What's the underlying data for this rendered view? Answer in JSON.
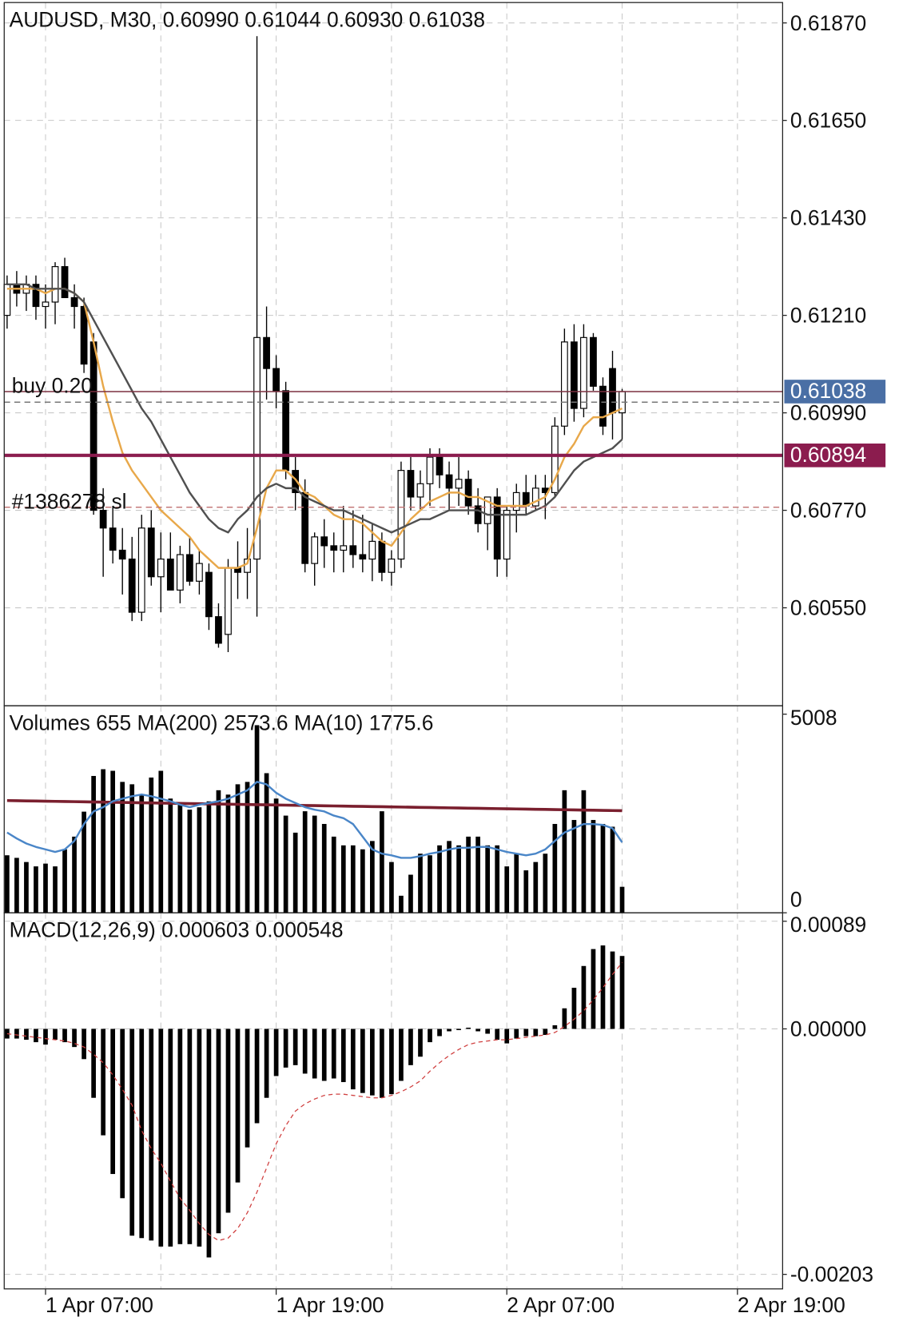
{
  "chart_data": [
    {
      "type": "candlestick",
      "title": "AUDUSD, M30, 0.60990 0.61044 0.60930 0.61038",
      "x": [
        0,
        1,
        2,
        3,
        4,
        5,
        6,
        7,
        8,
        9,
        10,
        11,
        12,
        13,
        14,
        15,
        16,
        17,
        18,
        19,
        20,
        21,
        22,
        23,
        24,
        25,
        26,
        27,
        28,
        29,
        30,
        31,
        32,
        33,
        34,
        35,
        36,
        37,
        38,
        39,
        40,
        41,
        42,
        43,
        44,
        45,
        46,
        47,
        48,
        49,
        50,
        51,
        52,
        53,
        54,
        55,
        56,
        57,
        58,
        59,
        60,
        61,
        62,
        63,
        64
      ],
      "xlim": [
        -0.3,
        80.7
      ],
      "xticks": [
        {
          "value": 4,
          "label": "1 Apr 07:00"
        },
        {
          "value": 28,
          "label": "1 Apr 19:00"
        },
        {
          "value": 52,
          "label": "2 Apr 07:00"
        },
        {
          "value": 76,
          "label": "2 Apr 19:00"
        }
      ],
      "open": [
        0.6121,
        0.6128,
        0.6126,
        0.6128,
        0.6123,
        0.6124,
        0.6132,
        0.6125,
        0.6123,
        0.6115,
        0.6077,
        0.6073,
        0.6068,
        0.6066,
        0.6054,
        0.6073,
        0.6062,
        0.6066,
        0.6059,
        0.6067,
        0.6061,
        0.6063,
        0.6053,
        0.6049,
        0.6064,
        0.6063,
        0.6066,
        0.6116,
        0.6109,
        0.6104,
        0.6086,
        0.6081,
        0.6065,
        0.6071,
        0.6069,
        0.6068,
        0.6069,
        0.6067,
        0.6066,
        0.607,
        0.6063,
        0.6066,
        0.6086,
        0.608,
        0.6083,
        0.6089,
        0.6085,
        0.6082,
        0.6084,
        0.6078,
        0.6074,
        0.608,
        0.6066,
        0.6077,
        0.6081,
        0.6078,
        0.6082,
        0.6081,
        0.6096,
        0.6115,
        0.61,
        0.6116,
        0.6105,
        0.6109,
        0.6099
      ],
      "high": [
        0.613,
        0.6131,
        0.613,
        0.613,
        0.6128,
        0.6133,
        0.6134,
        0.6128,
        0.6125,
        0.6117,
        0.6082,
        0.6078,
        0.6073,
        0.6071,
        0.6076,
        0.6077,
        0.6072,
        0.6072,
        0.6069,
        0.6071,
        0.6068,
        0.6065,
        0.6056,
        0.6066,
        0.607,
        0.6073,
        0.6184,
        0.6123,
        0.6112,
        0.6106,
        0.6089,
        0.6084,
        0.6072,
        0.6075,
        0.6072,
        0.6078,
        0.6077,
        0.6076,
        0.6074,
        0.6072,
        0.6068,
        0.6088,
        0.6089,
        0.6086,
        0.6091,
        0.6091,
        0.6088,
        0.6089,
        0.6086,
        0.6082,
        0.608,
        0.6082,
        0.6078,
        0.6083,
        0.6085,
        0.6085,
        0.6085,
        0.6098,
        0.6118,
        0.6119,
        0.6119,
        0.6117,
        0.6107,
        0.6113,
        0.61044
      ],
      "low": [
        0.6118,
        0.6123,
        0.6122,
        0.612,
        0.6118,
        0.6119,
        0.6125,
        0.6118,
        0.6108,
        0.6076,
        0.6062,
        0.6065,
        0.6058,
        0.6052,
        0.6052,
        0.606,
        0.6054,
        0.6059,
        0.6056,
        0.606,
        0.6058,
        0.605,
        0.6046,
        0.6045,
        0.6057,
        0.6057,
        0.6053,
        0.6102,
        0.61,
        0.6084,
        0.6077,
        0.6063,
        0.606,
        0.6064,
        0.6063,
        0.6063,
        0.6064,
        0.6063,
        0.6061,
        0.6061,
        0.606,
        0.6064,
        0.6077,
        0.6077,
        0.6078,
        0.6082,
        0.6077,
        0.6078,
        0.6076,
        0.6072,
        0.6068,
        0.6062,
        0.6062,
        0.6072,
        0.6076,
        0.6077,
        0.6075,
        0.608,
        0.6094,
        0.6097,
        0.6098,
        0.6104,
        0.6094,
        0.6093,
        0.6093
      ],
      "close": [
        0.6128,
        0.6126,
        0.6128,
        0.6123,
        0.6124,
        0.6132,
        0.6125,
        0.6123,
        0.611,
        0.6077,
        0.6073,
        0.6068,
        0.6066,
        0.6054,
        0.6073,
        0.6062,
        0.6066,
        0.6059,
        0.6067,
        0.6061,
        0.6065,
        0.6053,
        0.6047,
        0.6064,
        0.6063,
        0.6066,
        0.6116,
        0.6109,
        0.6104,
        0.6086,
        0.6081,
        0.6065,
        0.6071,
        0.6069,
        0.6068,
        0.6069,
        0.6067,
        0.6066,
        0.607,
        0.6063,
        0.6066,
        0.6086,
        0.608,
        0.6083,
        0.6089,
        0.6085,
        0.6082,
        0.6084,
        0.6078,
        0.6074,
        0.608,
        0.6066,
        0.6077,
        0.6081,
        0.6078,
        0.6082,
        0.6081,
        0.6096,
        0.6115,
        0.61,
        0.6116,
        0.6105,
        0.6096,
        0.6099,
        0.61038
      ],
      "series": [
        {
          "color": "#e8a84a",
          "values": [
            0.6127,
            0.6127,
            0.6127,
            0.6127,
            0.6126,
            0.6127,
            0.6127,
            0.6126,
            0.6124,
            0.6115,
            0.6105,
            0.6097,
            0.609,
            0.6086,
            0.6083,
            0.608,
            0.6077,
            0.6075,
            0.6073,
            0.6071,
            0.6068,
            0.6066,
            0.6064,
            0.6064,
            0.6064,
            0.6065,
            0.6073,
            0.6082,
            0.6086,
            0.6086,
            0.6084,
            0.6081,
            0.608,
            0.6078,
            0.6076,
            0.6075,
            0.6075,
            0.6074,
            0.6072,
            0.607,
            0.6069,
            0.6072,
            0.6075,
            0.6077,
            0.6079,
            0.608,
            0.6081,
            0.6081,
            0.608,
            0.608,
            0.6079,
            0.6078,
            0.6078,
            0.6078,
            0.6078,
            0.6079,
            0.608,
            0.6084,
            0.6089,
            0.6092,
            0.6096,
            0.6098,
            0.6098,
            0.6099,
            0.61
          ]
        },
        {
          "color": "#505050",
          "values": [
            0.6128,
            0.6128,
            0.6128,
            0.6127,
            0.6127,
            0.6127,
            0.6127,
            0.6126,
            0.6124,
            0.612,
            0.6116,
            0.6112,
            0.6108,
            0.6104,
            0.61,
            0.6097,
            0.6093,
            0.6089,
            0.6085,
            0.6081,
            0.6078,
            0.6075,
            0.6073,
            0.6072,
            0.6075,
            0.6077,
            0.608,
            0.6082,
            0.6083,
            0.6082,
            0.6082,
            0.608,
            0.6079,
            0.6078,
            0.6077,
            0.6077,
            0.6076,
            0.6075,
            0.6074,
            0.6073,
            0.6072,
            0.6073,
            0.6074,
            0.6075,
            0.6075,
            0.6076,
            0.6077,
            0.6077,
            0.6077,
            0.6077,
            0.6076,
            0.6076,
            0.6076,
            0.6076,
            0.6076,
            0.6077,
            0.6078,
            0.608,
            0.6083,
            0.6086,
            0.6088,
            0.6089,
            0.609,
            0.6091,
            0.6093
          ]
        }
      ],
      "ylim": [
        0.60329,
        0.61916
      ],
      "yticks": [
        {
          "value": 0.6187,
          "label": "0.61870"
        },
        {
          "value": 0.6165,
          "label": "0.61650"
        },
        {
          "value": 0.6143,
          "label": "0.61430"
        },
        {
          "value": 0.6121,
          "label": "0.61210"
        },
        {
          "value": 0.6099,
          "label": "0.60990"
        },
        {
          "value": 0.6077,
          "label": "0.60770"
        },
        {
          "value": 0.6055,
          "label": "0.60550"
        }
      ],
      "grid": true,
      "lines": [
        {
          "value": 0.61038,
          "text": "buy 0.20",
          "color": "#7b3040",
          "style": "solid"
        },
        {
          "value": 0.61014,
          "color": "#777777",
          "style": "dashed"
        },
        {
          "value": 0.60894,
          "color": "#8b1c4e",
          "style": "thick"
        },
        {
          "value": 0.60777,
          "text": "#1386278 sl",
          "color": "#c07070",
          "style": "dashed"
        }
      ],
      "price_labels": [
        {
          "value": 0.61038,
          "label": "0.61038",
          "color": "#4a6fa5"
        },
        {
          "value": 0.60894,
          "label": "0.60894",
          "color": "#8b1c4e"
        }
      ]
    },
    {
      "type": "bar",
      "title": "Volumes 655 MA(200) 2573.6 MA(10) 1775.6",
      "color": "#000000",
      "values": [
        1450,
        1385,
        1280,
        1170,
        1240,
        1170,
        1600,
        1920,
        2550,
        3450,
        3620,
        3580,
        3300,
        3240,
        2980,
        3410,
        3580,
        2880,
        2730,
        2600,
        2660,
        2810,
        3090,
        2980,
        3240,
        3300,
        4730,
        3520,
        2880,
        2450,
        2020,
        2560,
        2450,
        2240,
        1920,
        1700,
        1700,
        1600,
        1810,
        2560,
        1280,
        430,
        960,
        1490,
        1450,
        1700,
        1810,
        1700,
        1920,
        1920,
        1700,
        1700,
        1170,
        1490,
        1070,
        1280,
        1490,
        2240,
        3090,
        2340,
        3090,
        2340,
        2240,
        2170,
        655
      ],
      "series": [
        {
          "color": "#7a1f2e",
          "values": [
            2830,
            2826,
            2822,
            2818,
            2814,
            2810,
            2806,
            2802,
            2798,
            2794,
            2790,
            2786,
            2782,
            2778,
            2774,
            2770,
            2766,
            2762,
            2758,
            2754,
            2750,
            2746,
            2742,
            2738,
            2734,
            2730,
            2726,
            2722,
            2718,
            2714,
            2710,
            2706,
            2702,
            2698,
            2694,
            2690,
            2686,
            2682,
            2678,
            2674,
            2670,
            2666,
            2662,
            2658,
            2654,
            2650,
            2646,
            2642,
            2638,
            2634,
            2630,
            2626,
            2622,
            2618,
            2614,
            2610,
            2606,
            2602,
            2598,
            2594,
            2590,
            2586,
            2582,
            2578,
            2573.6
          ]
        },
        {
          "color": "#4a86c8",
          "values": [
            2024,
            1874,
            1747,
            1661,
            1598,
            1534,
            1598,
            1811,
            2237,
            2556,
            2663,
            2812,
            2876,
            2939,
            2982,
            2939,
            2876,
            2812,
            2726,
            2663,
            2726,
            2769,
            2812,
            2876,
            2982,
            3089,
            3302,
            3238,
            3025,
            2876,
            2769,
            2663,
            2599,
            2556,
            2450,
            2386,
            2237,
            1917,
            1598,
            1491,
            1448,
            1385,
            1385,
            1427,
            1491,
            1534,
            1598,
            1640,
            1640,
            1661,
            1661,
            1598,
            1534,
            1491,
            1448,
            1491,
            1598,
            1811,
            2024,
            2130,
            2237,
            2237,
            2215,
            2130,
            1775.6
          ]
        }
      ],
      "ylim": [
        0,
        5221
      ],
      "yticks": [
        0,
        5008
      ],
      "grid": false
    },
    {
      "type": "bar",
      "title": "MACD(12,26,9) 0.000603 0.000548",
      "color": "#000000",
      "values": [
        -8e-05,
        -8e-05,
        -9e-05,
        -0.00011,
        -0.00013,
        -9e-05,
        -0.00011,
        -0.00015,
        -0.00025,
        -0.00057,
        -0.00088,
        -0.0012,
        -0.0014,
        -0.00171,
        -0.00173,
        -0.00175,
        -0.0018,
        -0.0018,
        -0.00178,
        -0.00178,
        -0.0018,
        -0.00189,
        -0.00169,
        -0.00152,
        -0.00127,
        -0.00098,
        -0.00078,
        -0.00057,
        -0.00039,
        -0.00032,
        -0.0003,
        -0.00037,
        -0.00041,
        -0.00043,
        -0.00041,
        -0.00044,
        -0.0005,
        -0.00053,
        -0.00055,
        -0.00057,
        -0.00054,
        -0.00043,
        -0.0003,
        -0.00023,
        -0.00011,
        -6e-05,
        -2e-05,
        -1e-05,
        1e-05,
        -2e-05,
        -4e-05,
        -9e-05,
        -0.00012,
        -8e-05,
        -6e-05,
        -6e-05,
        -5e-05,
        3e-05,
        0.00017,
        0.00034,
        0.00052,
        0.00066,
        0.00069,
        0.00064,
        0.000603
      ],
      "series": [
        {
          "color": "#d04040",
          "dashed": true,
          "values": [
            -4e-05,
            -5e-05,
            -6e-05,
            -7e-05,
            -8e-05,
            -9e-05,
            -0.0001,
            -0.00012,
            -0.00015,
            -0.00021,
            -0.00028,
            -0.00038,
            -0.0005,
            -0.00063,
            -0.00084,
            -0.00099,
            -0.00111,
            -0.00126,
            -0.0014,
            -0.0015,
            -0.00161,
            -0.0017,
            -0.00175,
            -0.00173,
            -0.00165,
            -0.00152,
            -0.00135,
            -0.00115,
            -0.00095,
            -0.0008,
            -0.00068,
            -0.00062,
            -0.00058,
            -0.00055,
            -0.00054,
            -0.00054,
            -0.00055,
            -0.00056,
            -0.00057,
            -0.00057,
            -0.00055,
            -0.00052,
            -0.00048,
            -0.00043,
            -0.00035,
            -0.00028,
            -0.00022,
            -0.00017,
            -0.00013,
            -0.00011,
            -0.0001,
            -9e-05,
            -9e-05,
            -8e-05,
            -7e-05,
            -6e-05,
            -5e-05,
            -3e-05,
            2e-05,
            8e-05,
            0.00015,
            0.00024,
            0.00034,
            0.00045,
            0.000548
          ]
        }
      ],
      "ylim": [
        -0.00215,
        0.00096
      ],
      "yticks": [
        {
          "value": 0.00089,
          "label": "0.00089"
        },
        {
          "value": 0,
          "label": "0.00000"
        },
        {
          "value": -0.00203,
          "label": "-0.00203"
        }
      ],
      "grid": true
    }
  ]
}
